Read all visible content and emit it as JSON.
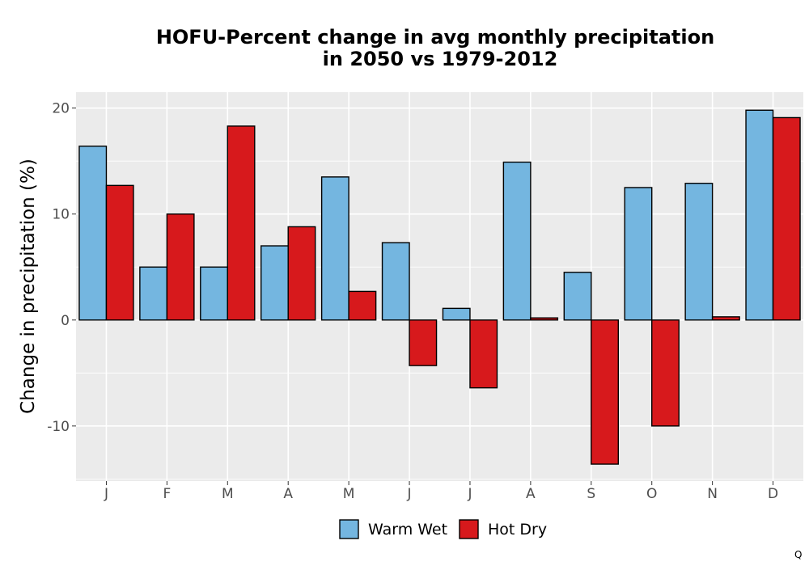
{
  "chart_data": {
    "type": "bar",
    "title_lines": [
      "HOFU-Percent change in avg monthly precipitation",
      "in 2050 vs 1979-2012"
    ],
    "xlabel": "",
    "ylabel": "Change in precipitation (%)",
    "categories": [
      "J",
      "F",
      "M",
      "A",
      "M",
      "J",
      "J",
      "A",
      "S",
      "O",
      "N",
      "D"
    ],
    "series": [
      {
        "name": "Warm Wet",
        "color": "#74b6e0",
        "values": [
          16.4,
          5.0,
          5.0,
          7.0,
          13.5,
          7.3,
          1.1,
          14.9,
          4.5,
          12.5,
          12.9,
          19.8
        ]
      },
      {
        "name": "Hot Dry",
        "color": "#d7191c",
        "values": [
          12.7,
          10.0,
          18.3,
          8.8,
          2.7,
          -4.3,
          -6.4,
          0.2,
          -13.6,
          -10.0,
          0.3,
          19.1
        ]
      }
    ],
    "ylim": [
      -15.2,
      21.5
    ],
    "yticks": [
      20,
      10,
      0,
      -10
    ],
    "ytick_labels": [
      "20",
      "10",
      "0",
      "-10"
    ],
    "grid": true,
    "legend_position": "bottom"
  },
  "corner_mark": "Q",
  "colors": {
    "panel_bg": "#ebebeb",
    "grid": "#ffffff",
    "bar_outline": "#000000"
  }
}
